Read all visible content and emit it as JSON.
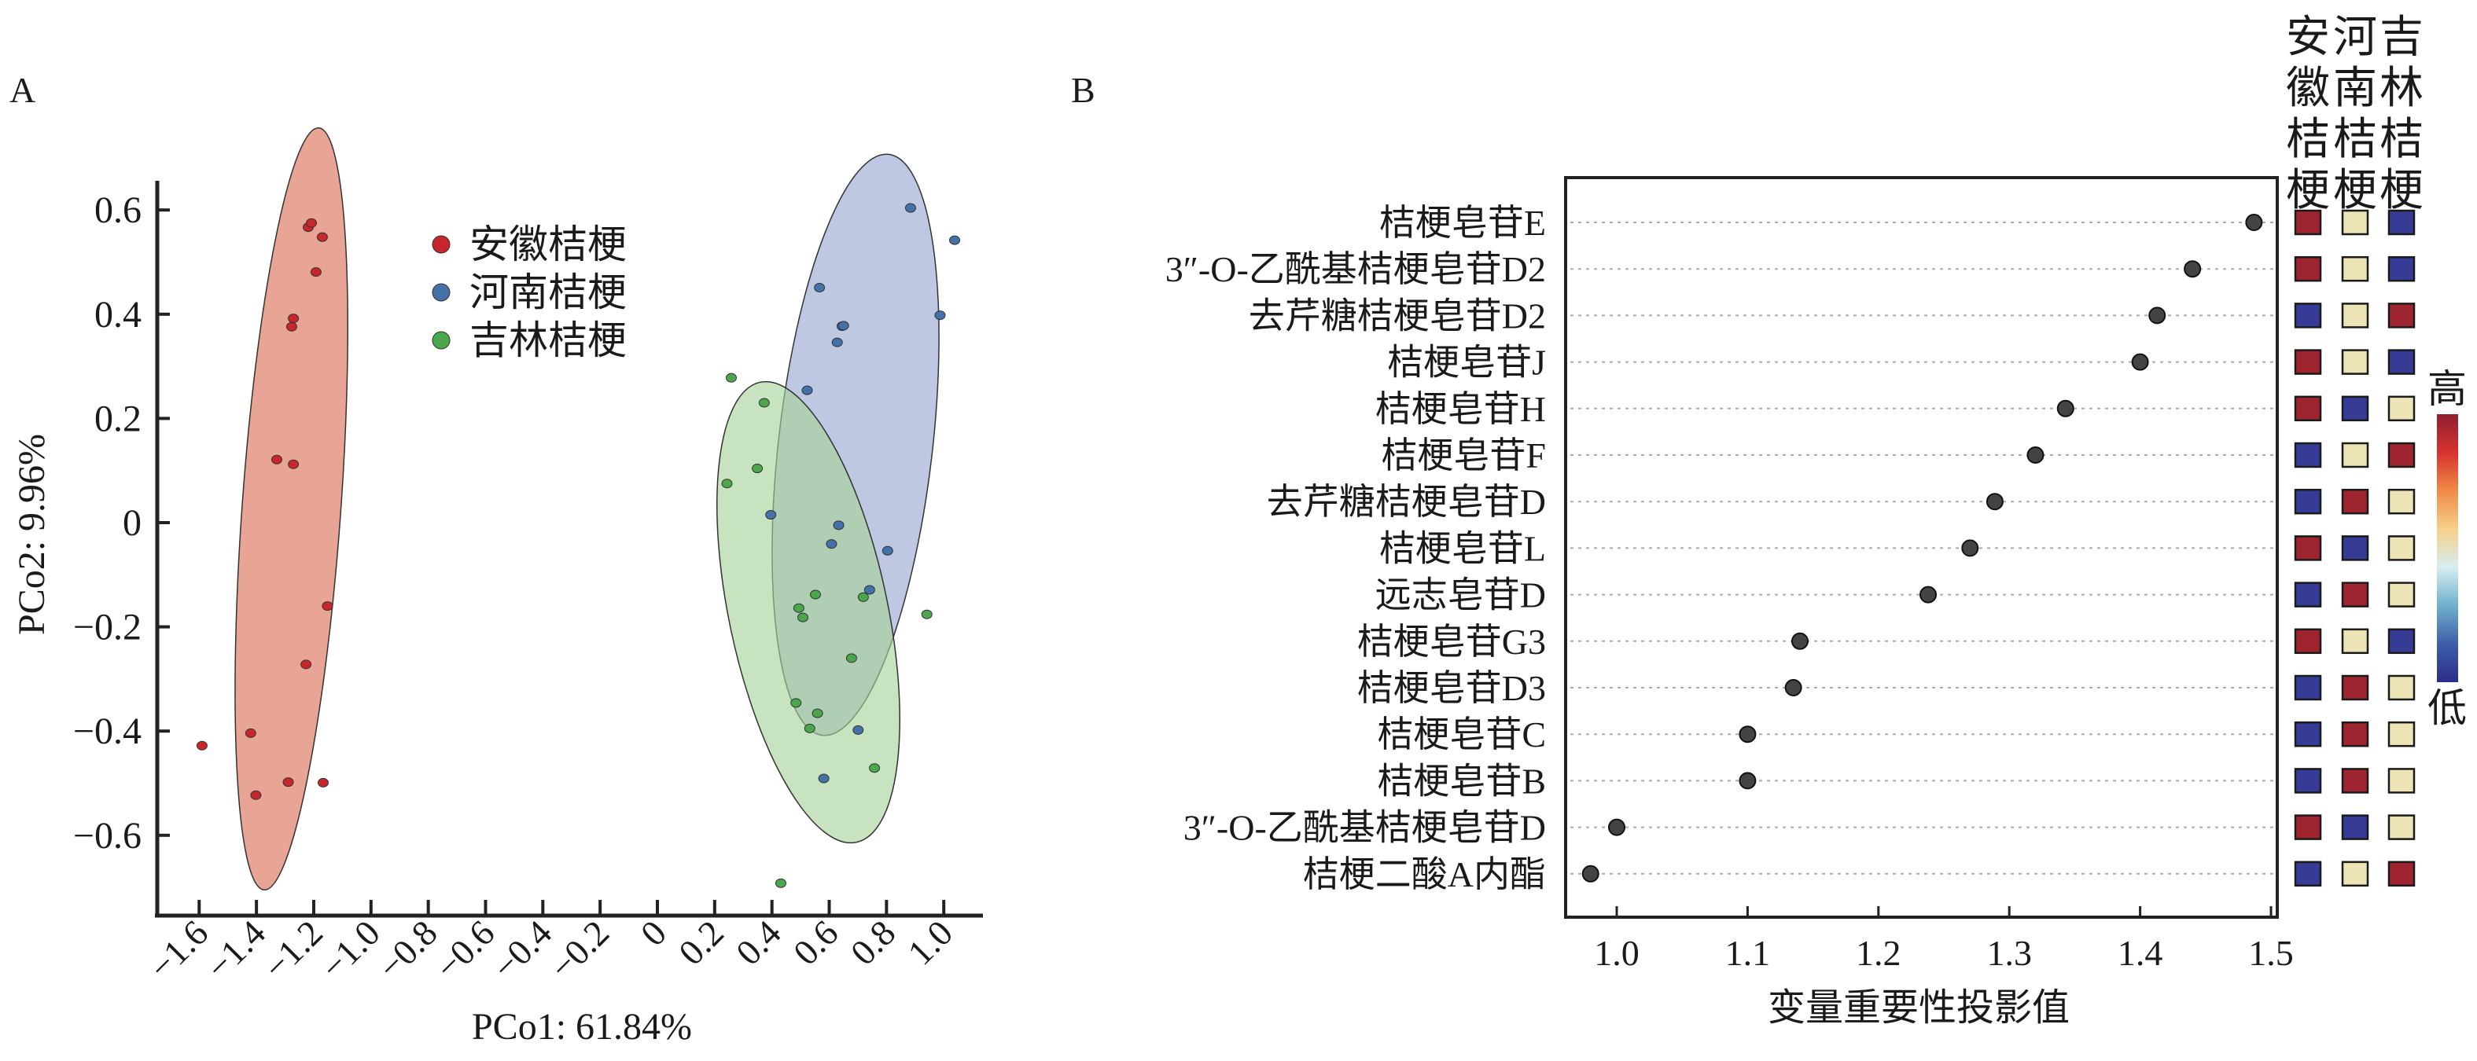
{
  "chart_data": [
    {
      "panel_label": "A",
      "type": "scatter",
      "xlabel": "PCo1: 61.84%",
      "ylabel": "PCo2: 9.96%",
      "xlim": [
        -1.75,
        1.15
      ],
      "ylim": [
        -0.76,
        0.66
      ],
      "xticks": [
        -1.6,
        -1.4,
        -1.2,
        -1.0,
        -0.8,
        -0.6,
        -0.4,
        -0.2,
        0,
        0.2,
        0.4,
        0.6,
        0.8,
        1.0
      ],
      "xtick_labels": [
        "−1.6",
        "−1.4",
        "−1.2",
        "−1.0",
        "−0.8",
        "−0.6",
        "−0.4",
        "−0.2",
        "0",
        "0.2",
        "0.4",
        "0.6",
        "0.8",
        "1.0"
      ],
      "yticks": [
        0.6,
        0.4,
        0.2,
        0,
        -0.2,
        -0.4,
        -0.6
      ],
      "ytick_labels": [
        "0.6",
        "0.4",
        "0.2",
        "0",
        "−0.2",
        "−0.4",
        "−0.6"
      ],
      "grid": false,
      "legend_position": "top-center",
      "confidence_ellipses": true,
      "series": [
        {
          "name": "安徽桔梗",
          "color": "#c8262c",
          "ellipse_color": "#e8a494",
          "points": [
            [
              -1.219,
              0.567
            ],
            [
              -1.208,
              0.575
            ],
            [
              -1.17,
              0.548
            ],
            [
              -1.192,
              0.481
            ],
            [
              -1.271,
              0.392
            ],
            [
              -1.277,
              0.376
            ],
            [
              -1.329,
              0.121
            ],
            [
              -1.271,
              0.112
            ],
            [
              -1.152,
              -0.16
            ],
            [
              -1.227,
              -0.272
            ],
            [
              -1.42,
              -0.404
            ],
            [
              -1.59,
              -0.428
            ],
            [
              -1.402,
              -0.523
            ],
            [
              -1.289,
              -0.498
            ],
            [
              -1.167,
              -0.499
            ]
          ]
        },
        {
          "name": "河南桔梗",
          "color": "#4472a8",
          "ellipse_color": "#98a6d0",
          "points": [
            [
              0.884,
              0.604
            ],
            [
              1.038,
              0.542
            ],
            [
              0.566,
              0.451
            ],
            [
              0.987,
              0.398
            ],
            [
              0.645,
              0.377
            ],
            [
              0.65,
              0.378
            ],
            [
              0.628,
              0.346
            ],
            [
              0.523,
              0.254
            ],
            [
              0.396,
              0.015
            ],
            [
              0.633,
              -0.005
            ],
            [
              0.608,
              -0.041
            ],
            [
              0.804,
              -0.054
            ],
            [
              0.741,
              -0.129
            ],
            [
              0.701,
              -0.398
            ],
            [
              0.581,
              -0.491
            ]
          ]
        },
        {
          "name": "吉林桔梗",
          "color": "#4ca64c",
          "ellipse_color": "#a6d298",
          "points": [
            [
              0.258,
              0.278
            ],
            [
              0.373,
              0.23
            ],
            [
              0.349,
              0.104
            ],
            [
              0.243,
              0.075
            ],
            [
              0.552,
              -0.138
            ],
            [
              0.494,
              -0.164
            ],
            [
              0.508,
              -0.182
            ],
            [
              0.719,
              -0.143
            ],
            [
              0.941,
              -0.176
            ],
            [
              0.678,
              -0.26
            ],
            [
              0.484,
              -0.346
            ],
            [
              0.559,
              -0.366
            ],
            [
              0.532,
              -0.395
            ],
            [
              0.758,
              -0.471
            ],
            [
              0.431,
              -0.692
            ]
          ]
        }
      ]
    },
    {
      "panel_label": "B",
      "type": "scatter",
      "xlabel": "变量重要性投影值",
      "xlim": [
        0.96,
        1.51
      ],
      "xticks": [
        1.0,
        1.1,
        1.2,
        1.3,
        1.4,
        1.5
      ],
      "xtick_labels": [
        "1.0",
        "1.1",
        "1.2",
        "1.3",
        "1.4",
        "1.5"
      ],
      "grid": "horizontal dotted",
      "categories": [
        "桔梗皂苷E",
        "3″-O-乙酰基桔梗皂苷D2",
        "去芹糖桔梗皂苷D2",
        "桔梗皂苷J",
        "桔梗皂苷H",
        "桔梗皂苷F",
        "去芹糖桔梗皂苷D",
        "桔梗皂苷L",
        "远志皂苷D",
        "桔梗皂苷G3",
        "桔梗皂苷D3",
        "桔梗皂苷C",
        "桔梗皂苷B",
        "3″-O-乙酰基桔梗皂苷D",
        "桔梗二酸A内酯"
      ],
      "values": [
        1.487,
        1.44,
        1.413,
        1.4,
        1.343,
        1.32,
        1.289,
        1.27,
        1.238,
        1.14,
        1.135,
        1.1,
        1.1,
        1.0,
        0.98
      ],
      "point_color": "#444444"
    },
    {
      "type": "heatmap",
      "columns": [
        "安徽桔梗",
        "河南桔梗",
        "吉林桔梗"
      ],
      "rows_ref": "same categories as panel B",
      "levels": [
        [
          "high",
          "mid",
          "low"
        ],
        [
          "high",
          "mid",
          "low"
        ],
        [
          "low",
          "mid",
          "high"
        ],
        [
          "high",
          "mid",
          "low"
        ],
        [
          "high",
          "low",
          "mid"
        ],
        [
          "low",
          "mid",
          "high"
        ],
        [
          "low",
          "high",
          "mid"
        ],
        [
          "high",
          "low",
          "mid"
        ],
        [
          "low",
          "high",
          "mid"
        ],
        [
          "high",
          "mid",
          "low"
        ],
        [
          "low",
          "high",
          "mid"
        ],
        [
          "low",
          "high",
          "mid"
        ],
        [
          "low",
          "high",
          "mid"
        ],
        [
          "high",
          "low",
          "mid"
        ],
        [
          "low",
          "mid",
          "high"
        ]
      ],
      "level_colors": {
        "high": "#9e2430",
        "mid": "#ece4b4",
        "low": "#363c96"
      },
      "colorbar": {
        "high_label": "高",
        "low_label": "低",
        "stops": [
          "#8e1f32",
          "#d6322e",
          "#f08a48",
          "#f6d08a",
          "#d6eef0",
          "#6fb0cc",
          "#3e5ea8",
          "#2c2c8a"
        ]
      }
    }
  ]
}
